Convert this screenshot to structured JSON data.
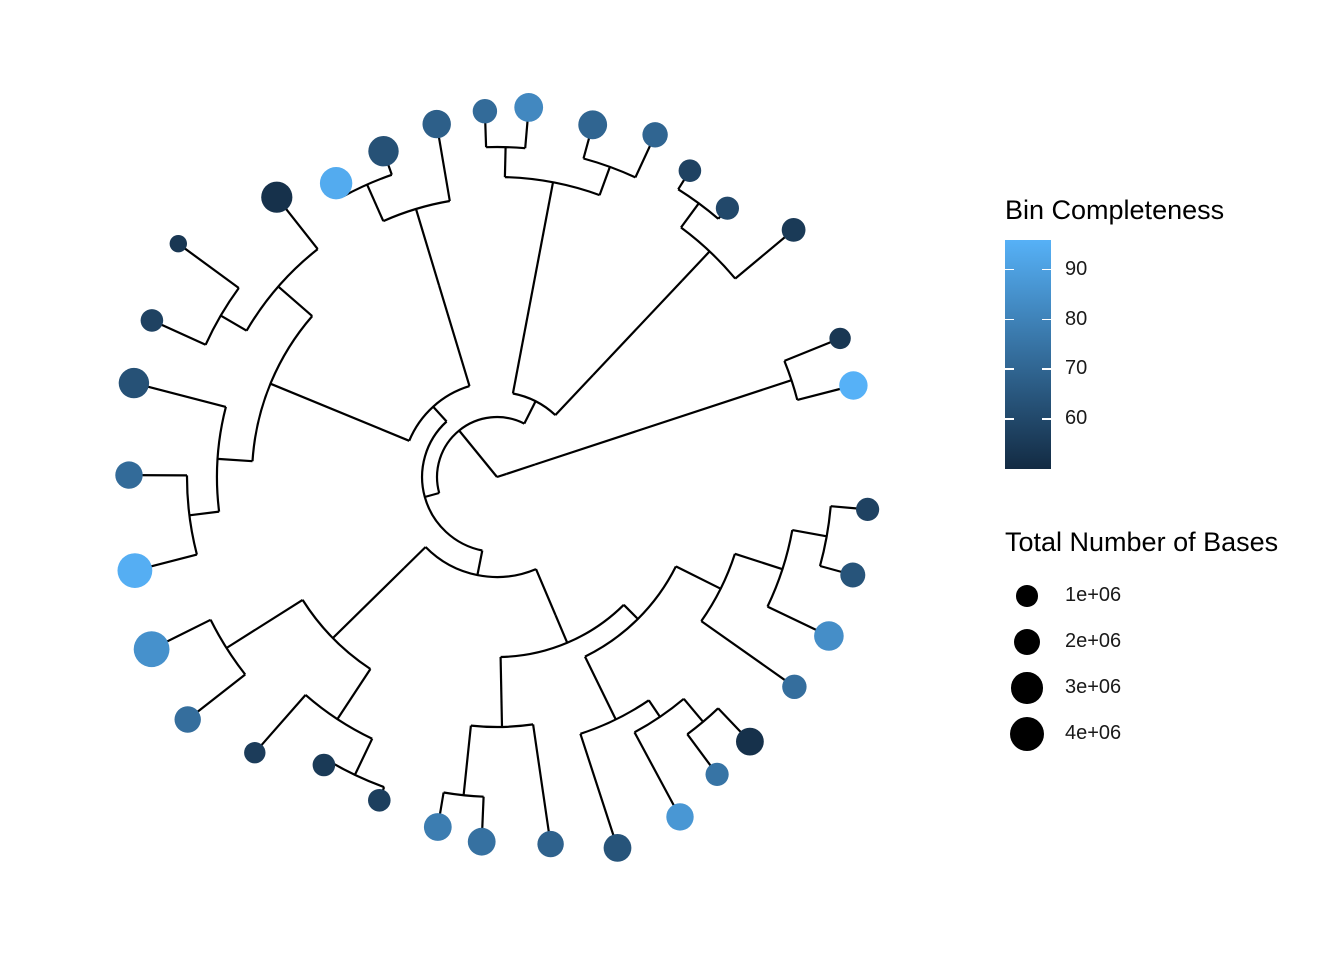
{
  "colors": {
    "completeness_low": "#132B43",
    "completeness_high": "#56B1F7",
    "branch": "#000000",
    "size_key_dot": "#000000"
  },
  "legend": {
    "color": {
      "title": "Bin Completeness",
      "range": [
        50,
        96
      ],
      "ticks": [
        "90",
        "80",
        "70",
        "60"
      ]
    },
    "size": {
      "title": "Total Number of Bases",
      "keys": [
        "1e+06",
        "2e+06",
        "3e+06",
        "4e+06"
      ]
    }
  },
  "tree": {
    "layout": "circular dendrogram",
    "tip_count": 34,
    "tips": [
      {
        "completeness": 55,
        "bases": 1400000
      },
      {
        "completeness": 96,
        "bases": 2300000
      },
      {
        "completeness": 60,
        "bases": 1300000
      },
      {
        "completeness": 58,
        "bases": 1200000
      },
      {
        "completeness": 70,
        "bases": 1700000
      },
      {
        "completeness": 70,
        "bases": 2400000
      },
      {
        "completeness": 82,
        "bases": 2400000
      },
      {
        "completeness": 72,
        "bases": 1500000
      },
      {
        "completeness": 68,
        "bases": 2300000
      },
      {
        "completeness": 63,
        "bases": 2800000
      },
      {
        "completeness": 94,
        "bases": 3300000
      },
      {
        "completeness": 52,
        "bases": 3000000
      },
      {
        "completeness": 54,
        "bases": 500000
      },
      {
        "completeness": 58,
        "bases": 1200000
      },
      {
        "completeness": 63,
        "bases": 2800000
      },
      {
        "completeness": 72,
        "bases": 2100000
      },
      {
        "completeness": 95,
        "bases": 4000000
      },
      {
        "completeness": 85,
        "bases": 4300000
      },
      {
        "completeness": 73,
        "bases": 1900000
      },
      {
        "completeness": 56,
        "bases": 1000000
      },
      {
        "completeness": 55,
        "bases": 1200000
      },
      {
        "completeness": 57,
        "bases": 1200000
      },
      {
        "completeness": 78,
        "bases": 2200000
      },
      {
        "completeness": 74,
        "bases": 2200000
      },
      {
        "completeness": 69,
        "bases": 1900000
      },
      {
        "completeness": 64,
        "bases": 2200000
      },
      {
        "completeness": 87,
        "bases": 2100000
      },
      {
        "completeness": 75,
        "bases": 1300000
      },
      {
        "completeness": 52,
        "bases": 2200000
      },
      {
        "completeness": 73,
        "bases": 1500000
      },
      {
        "completeness": 84,
        "bases": 2600000
      },
      {
        "completeness": 64,
        "bases": 1600000
      },
      {
        "completeness": 58,
        "bases": 1300000
      },
      {
        "completeness": 54,
        "bases": 1000000
      }
    ]
  }
}
